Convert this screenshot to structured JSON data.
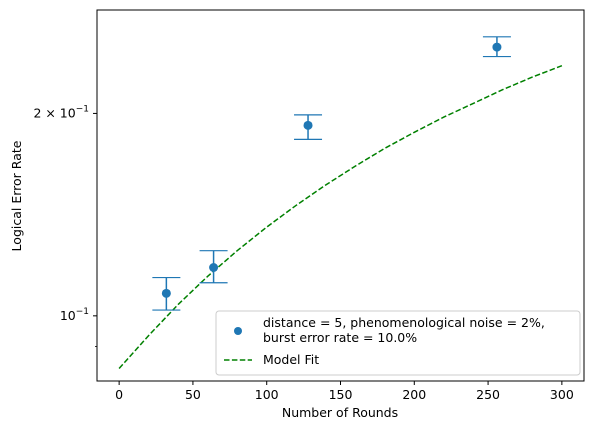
{
  "chart_data": {
    "type": "scatter",
    "title": "",
    "xlabel": "Number of Rounds",
    "ylabel": "Logical Error Rate",
    "xlim": [
      -15,
      315
    ],
    "ylim": [
      0.08,
      0.285
    ],
    "yscale": "log",
    "grid": false,
    "legend_position": "lower-right",
    "x_ticks": [
      {
        "value": 0,
        "label": "0"
      },
      {
        "value": 50,
        "label": "50"
      },
      {
        "value": 100,
        "label": "100"
      },
      {
        "value": 150,
        "label": "150"
      },
      {
        "value": 200,
        "label": "200"
      },
      {
        "value": 250,
        "label": "250"
      },
      {
        "value": 300,
        "label": "300"
      }
    ],
    "y_major_ticks": [
      {
        "value": 0.1,
        "base": "10",
        "exp": "−1"
      },
      {
        "value": 0.2,
        "base": "2 × 10",
        "exp": "−1"
      }
    ],
    "y_minor_ticks": [
      0.09,
      0.3
    ],
    "series": [
      {
        "name": "distance = 5, phenomenological noise = 2%,",
        "name_line2": "burst error rate = 10.0%",
        "kind": "errorbar",
        "color": "#1f77b4",
        "x": [
          32,
          64,
          128,
          256
        ],
        "y": [
          0.108,
          0.118,
          0.192,
          0.251
        ],
        "yerr_low": [
          0.102,
          0.112,
          0.183,
          0.243
        ],
        "yerr_high": [
          0.114,
          0.125,
          0.199,
          0.26
        ]
      },
      {
        "name": "Model Fit",
        "kind": "line",
        "style": "dashed",
        "color": "#008000",
        "x": [
          0,
          20,
          40,
          60,
          80,
          100,
          120,
          140,
          160,
          180,
          200,
          220,
          240,
          260,
          280,
          300
        ],
        "y": [
          0.0835,
          0.0935,
          0.104,
          0.1145,
          0.125,
          0.1355,
          0.146,
          0.1565,
          0.167,
          0.1775,
          0.1875,
          0.1975,
          0.207,
          0.217,
          0.2265,
          0.2355
        ]
      }
    ]
  }
}
